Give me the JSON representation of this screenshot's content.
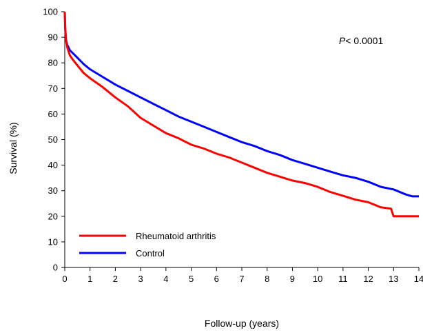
{
  "chart_data": {
    "type": "line",
    "xlabel": "Follow-up (years)",
    "ylabel": "Survival (%)",
    "xlim": [
      0,
      14
    ],
    "ylim": [
      0,
      100
    ],
    "xticks": [
      "0",
      "1",
      "2",
      "3",
      "4",
      "5",
      "6",
      "7",
      "8",
      "9",
      "10",
      "11",
      "12",
      "13",
      "14"
    ],
    "yticks": [
      "0",
      "10",
      "20",
      "30",
      "40",
      "50",
      "60",
      "70",
      "80",
      "90",
      "100"
    ],
    "annotation_prefix": "P",
    "annotation_rest": "< 0.0001",
    "legend_position": "bottom-left",
    "grid": false,
    "series": [
      {
        "name": "Rheumatoid arthritis",
        "color": "#ff0000",
        "x": [
          0,
          0.02,
          0.05,
          0.1,
          0.2,
          0.3,
          0.5,
          0.75,
          1,
          1.5,
          2,
          2.5,
          3,
          3.5,
          4,
          4.5,
          5,
          5.5,
          6,
          6.5,
          7,
          7.5,
          8,
          8.5,
          9,
          9.5,
          10,
          10.5,
          11,
          11.5,
          12,
          12.5,
          12.9,
          13,
          13.1,
          13.5,
          14
        ],
        "y": [
          100,
          94,
          89,
          86,
          83,
          81.5,
          79,
          76,
          74,
          70.5,
          66.5,
          63,
          58.5,
          55.5,
          52.5,
          50.5,
          48,
          46.5,
          44.5,
          43,
          41,
          39,
          37,
          35.5,
          34,
          33,
          31.5,
          29.5,
          28,
          26.5,
          25.5,
          23.5,
          23,
          20,
          20,
          20,
          20
        ]
      },
      {
        "name": "Control",
        "color": "#0000ff",
        "x": [
          0,
          0.02,
          0.05,
          0.1,
          0.2,
          0.3,
          0.5,
          0.75,
          1,
          1.5,
          2,
          2.5,
          3,
          3.5,
          4,
          4.5,
          5,
          5.5,
          6,
          6.5,
          7,
          7.5,
          8,
          8.5,
          9,
          9.5,
          10,
          10.5,
          11,
          11.5,
          12,
          12.5,
          13,
          13.5,
          13.75,
          14
        ],
        "y": [
          100,
          93,
          89,
          87,
          85,
          84,
          82,
          79.5,
          77.5,
          74.5,
          71.5,
          69,
          66.5,
          64,
          61.5,
          59,
          57,
          55,
          53,
          51,
          49,
          47.5,
          45.5,
          44,
          42,
          40.5,
          39,
          37.5,
          36,
          35,
          33.5,
          31.5,
          30.5,
          28.5,
          27.8,
          27.8
        ]
      }
    ]
  }
}
